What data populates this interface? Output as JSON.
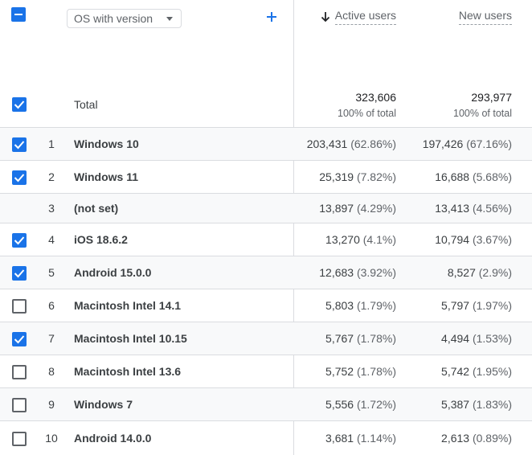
{
  "header": {
    "dimension_select": "OS with version",
    "columns": [
      {
        "label": "Active users",
        "sorted": "descending"
      },
      {
        "label": "New users"
      }
    ],
    "icons": {
      "add": "plus-icon",
      "sort": "arrow-down-icon",
      "select": "caret-down-icon"
    }
  },
  "totals": {
    "label": "Total",
    "active_users": "323,606",
    "active_pct": "100% of total",
    "new_users": "293,977",
    "new_pct": "100% of total"
  },
  "rows": [
    {
      "rank": "1",
      "name": "Windows 10",
      "active": "203,431",
      "active_pct": "(62.86%)",
      "new": "197,426",
      "new_pct": "(67.16%)",
      "checked": true,
      "checkbox": true
    },
    {
      "rank": "2",
      "name": "Windows 11",
      "active": "25,319",
      "active_pct": "(7.82%)",
      "new": "16,688",
      "new_pct": "(5.68%)",
      "checked": true,
      "checkbox": true
    },
    {
      "rank": "3",
      "name": "(not set)",
      "active": "13,897",
      "active_pct": "(4.29%)",
      "new": "13,413",
      "new_pct": "(4.56%)",
      "checked": false,
      "checkbox": false
    },
    {
      "rank": "4",
      "name": "iOS 18.6.2",
      "active": "13,270",
      "active_pct": "(4.1%)",
      "new": "10,794",
      "new_pct": "(3.67%)",
      "checked": true,
      "checkbox": true
    },
    {
      "rank": "5",
      "name": "Android 15.0.0",
      "active": "12,683",
      "active_pct": "(3.92%)",
      "new": "8,527",
      "new_pct": "(2.9%)",
      "checked": true,
      "checkbox": true
    },
    {
      "rank": "6",
      "name": "Macintosh Intel 14.1",
      "active": "5,803",
      "active_pct": "(1.79%)",
      "new": "5,797",
      "new_pct": "(1.97%)",
      "checked": false,
      "checkbox": true
    },
    {
      "rank": "7",
      "name": "Macintosh Intel 10.15",
      "active": "5,767",
      "active_pct": "(1.78%)",
      "new": "4,494",
      "new_pct": "(1.53%)",
      "checked": true,
      "checkbox": true
    },
    {
      "rank": "8",
      "name": "Macintosh Intel 13.6",
      "active": "5,752",
      "active_pct": "(1.78%)",
      "new": "5,742",
      "new_pct": "(1.95%)",
      "checked": false,
      "checkbox": true
    },
    {
      "rank": "9",
      "name": "Windows 7",
      "active": "5,556",
      "active_pct": "(1.72%)",
      "new": "5,387",
      "new_pct": "(1.83%)",
      "checked": false,
      "checkbox": true
    },
    {
      "rank": "10",
      "name": "Android 14.0.0",
      "active": "3,681",
      "active_pct": "(1.14%)",
      "new": "2,613",
      "new_pct": "(0.89%)",
      "checked": false,
      "checkbox": true
    }
  ],
  "colors": {
    "accent": "#1a73e8",
    "border": "#dadce0",
    "shade": "#f8f9fa"
  }
}
